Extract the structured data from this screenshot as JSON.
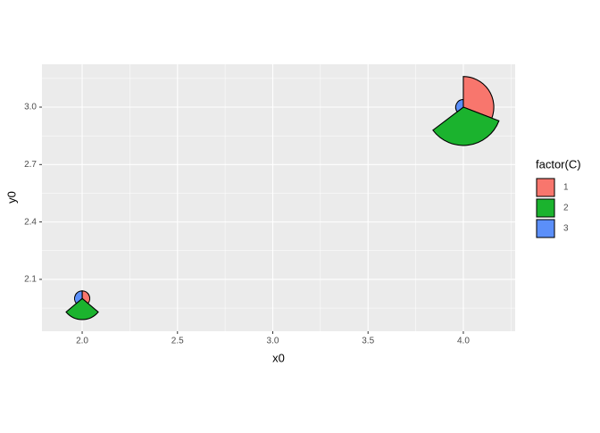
{
  "chart_data": {
    "type": "arc_bar",
    "x_label": "x0",
    "y_label": "y0",
    "xlim": [
      1.789,
      4.272
    ],
    "ylim": [
      1.829,
      3.224
    ],
    "xticks": [
      {
        "value": 2,
        "label": "2.0"
      },
      {
        "value": 2.5,
        "label": "2.5"
      },
      {
        "value": 3,
        "label": "3.0"
      },
      {
        "value": 3.5,
        "label": "3.5"
      },
      {
        "value": 4,
        "label": "4.0"
      }
    ],
    "yticks": [
      {
        "value": 2.1,
        "label": "2.1"
      },
      {
        "value": 2.4,
        "label": "2.4"
      },
      {
        "value": 2.7,
        "label": "2.7"
      },
      {
        "value": 3,
        "label": "3.0"
      }
    ],
    "grid": true,
    "legend_title": "factor(C)",
    "legend_position": "right",
    "groups": [
      {
        "name": "1",
        "color": "#f8766d"
      },
      {
        "name": "2",
        "color": "#1bb32e"
      },
      {
        "name": "3",
        "color": "#5b8ff9"
      }
    ],
    "pies": [
      {
        "x0": 2,
        "y0": 2,
        "slices": [
          {
            "group": 0,
            "r": 0.04,
            "start": 0,
            "end": 130
          },
          {
            "group": 1,
            "r": 0.11,
            "start": 130,
            "end": 230
          },
          {
            "group": 2,
            "r": 0.04,
            "start": 230,
            "end": 360
          }
        ]
      },
      {
        "x0": 4,
        "y0": 3,
        "slices": [
          {
            "group": 0,
            "r": 0.16,
            "start": 0,
            "end": 111
          },
          {
            "group": 1,
            "r": 0.2,
            "start": 111,
            "end": 233
          },
          {
            "group": 2,
            "r": 0.04,
            "start": 233,
            "end": 360
          }
        ]
      }
    ]
  }
}
